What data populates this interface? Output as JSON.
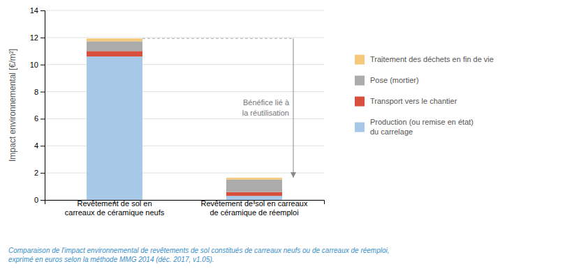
{
  "chart_data": {
    "type": "bar",
    "stacked": true,
    "categories": [
      "Revêtement de sol en\ncarreaux de céramique neufs",
      "Revêtement de sol en carreaux\nde céramique de réemploi"
    ],
    "series": [
      {
        "name": "Production (ou remise en état)\ndu carrelage",
        "color": "#A8C8E8",
        "values": [
          10.6,
          0.3
        ]
      },
      {
        "name": "Transport vers le chantier",
        "color": "#D94F3D",
        "values": [
          0.4,
          0.28
        ]
      },
      {
        "name": "Pose (mortier)",
        "color": "#ABABAB",
        "values": [
          0.72,
          0.92
        ]
      },
      {
        "name": "Traitement des déchets en fin de vie",
        "color": "#F5C97A",
        "values": [
          0.21,
          0.14
        ]
      }
    ],
    "y_label": "Impact environnemental [€/m²]",
    "ylim": [
      0,
      14
    ],
    "yticks": [
      0,
      2,
      4,
      6,
      8,
      10,
      12,
      14
    ],
    "grid": true,
    "legend": "right",
    "annotation": "Bénéfice lié à\nla réutilisation",
    "caption": "Comparaison de l'impact environnemental de revêtements de sol constitués de carreaux neufs ou de carreaux de réemploi,\nexprimé en euros selon la méthode MMG 2014 (déc. 2017, v1.05)."
  }
}
